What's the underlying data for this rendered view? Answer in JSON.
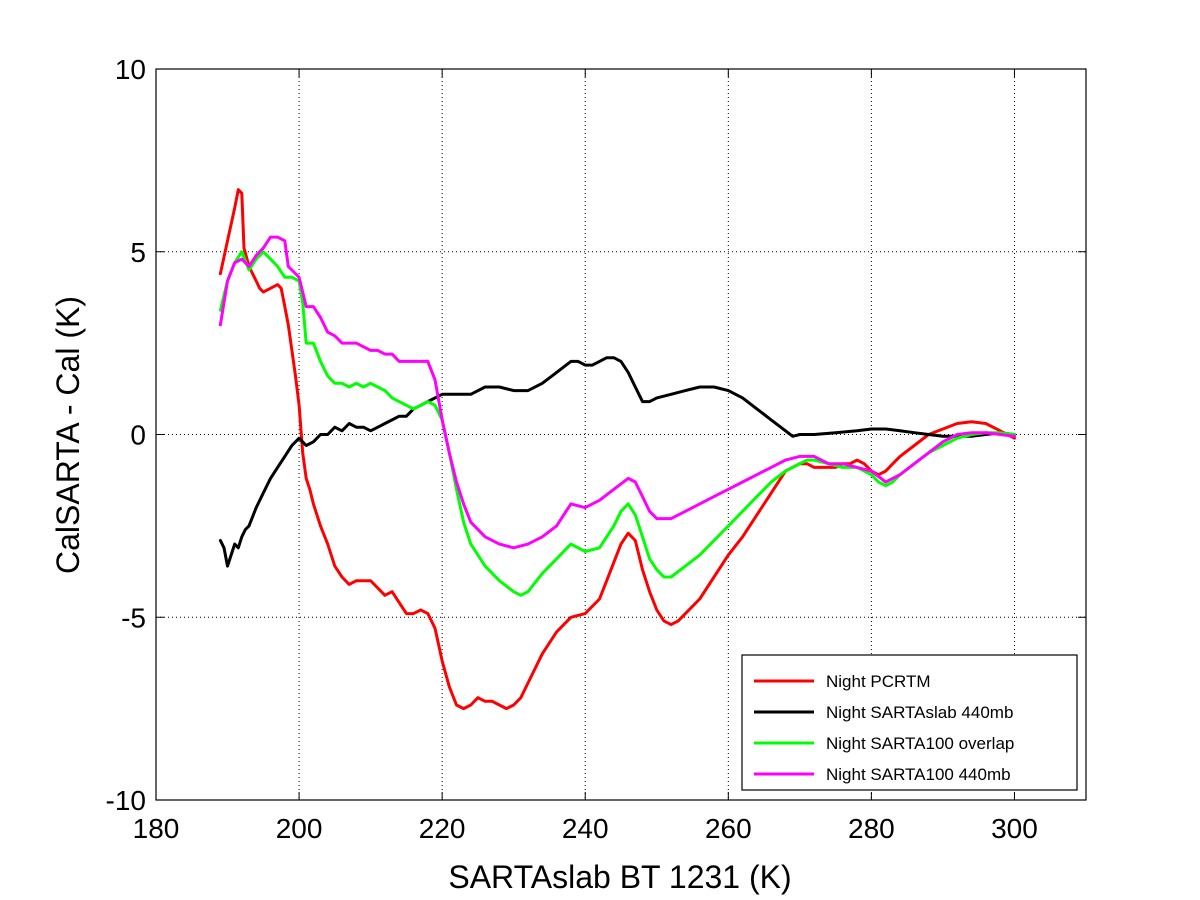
{
  "chart_data": {
    "type": "line",
    "title": "",
    "xlabel": "SARTAslab BT 1231 (K)",
    "ylabel": "CalSARTA - Cal (K)",
    "xlim": [
      180,
      310
    ],
    "ylim": [
      -10,
      10
    ],
    "xticks": [
      180,
      200,
      220,
      240,
      260,
      280,
      300
    ],
    "yticks": [
      -10,
      -5,
      0,
      5,
      10
    ],
    "xtick_labels": [
      "180",
      "200",
      "220",
      "240",
      "260",
      "280",
      "300"
    ],
    "ytick_labels": [
      "-10",
      "-5",
      "0",
      "5",
      "10"
    ],
    "grid": true,
    "legend_position": "bottom-right",
    "series": [
      {
        "name": "Night PCRTM",
        "color": "#ff0000",
        "x": [
          189,
          190,
          191,
          191.5,
          192,
          192.3,
          193,
          194,
          194.5,
          195,
          196,
          197,
          197.5,
          198,
          198.5,
          199,
          199.5,
          200,
          200.5,
          201,
          201.5,
          202,
          203,
          204,
          205,
          206,
          207,
          208,
          209,
          210,
          211,
          212,
          213,
          214,
          215,
          216,
          217,
          218,
          219,
          220,
          221,
          222,
          223,
          224,
          225,
          226,
          227,
          228,
          229,
          230,
          231,
          232,
          234,
          236,
          238,
          240,
          242,
          243,
          244,
          245,
          246,
          247,
          248,
          249,
          250,
          251,
          252,
          253,
          254,
          256,
          258,
          260,
          262,
          264,
          266,
          268,
          270,
          271,
          272,
          273,
          274,
          275,
          276,
          277,
          278,
          279,
          280,
          281,
          282,
          283,
          284,
          286,
          288,
          290,
          292,
          294,
          296,
          298,
          300
        ],
        "y": [
          4.4,
          5.3,
          6.2,
          6.7,
          6.6,
          5.1,
          4.6,
          4.2,
          4.0,
          3.9,
          4.0,
          4.1,
          4.0,
          3.5,
          3.0,
          2.3,
          1.6,
          0.8,
          -0.5,
          -1.2,
          -1.5,
          -1.9,
          -2.5,
          -3.0,
          -3.6,
          -3.9,
          -4.1,
          -4.0,
          -4.0,
          -4.0,
          -4.2,
          -4.4,
          -4.3,
          -4.6,
          -4.9,
          -4.9,
          -4.8,
          -4.9,
          -5.3,
          -6.2,
          -6.9,
          -7.4,
          -7.5,
          -7.4,
          -7.2,
          -7.3,
          -7.3,
          -7.4,
          -7.5,
          -7.4,
          -7.2,
          -6.8,
          -6.0,
          -5.4,
          -5.0,
          -4.9,
          -4.5,
          -4.0,
          -3.5,
          -3.0,
          -2.7,
          -2.9,
          -3.7,
          -4.3,
          -4.8,
          -5.1,
          -5.2,
          -5.1,
          -4.9,
          -4.5,
          -3.9,
          -3.3,
          -2.8,
          -2.2,
          -1.6,
          -1.0,
          -0.8,
          -0.8,
          -0.9,
          -0.9,
          -0.9,
          -0.9,
          -0.8,
          -0.8,
          -0.7,
          -0.8,
          -1.0,
          -1.1,
          -1.0,
          -0.8,
          -0.6,
          -0.3,
          0.0,
          0.15,
          0.3,
          0.35,
          0.3,
          0.1,
          -0.1
        ]
      },
      {
        "name": "Night SARTAslab 440mb",
        "color": "#000000",
        "x": [
          189,
          189.5,
          190,
          190.5,
          191,
          191.5,
          192,
          192.5,
          193,
          194,
          195,
          196,
          197,
          198,
          199,
          200,
          201,
          202,
          203,
          204,
          205,
          206,
          207,
          208,
          209,
          210,
          211,
          212,
          213,
          214,
          215,
          216,
          217,
          218,
          219,
          220,
          222,
          224,
          226,
          228,
          230,
          232,
          234,
          236,
          238,
          239,
          240,
          241,
          242,
          243,
          244,
          245,
          246,
          247,
          248,
          249,
          250,
          252,
          254,
          256,
          258,
          260,
          262,
          264,
          266,
          268,
          269,
          270,
          272,
          275,
          278,
          280,
          282,
          284,
          286,
          288,
          290,
          292,
          294,
          296,
          298,
          300
        ],
        "y": [
          -2.9,
          -3.1,
          -3.6,
          -3.3,
          -3.0,
          -3.1,
          -2.8,
          -2.6,
          -2.5,
          -2.0,
          -1.6,
          -1.2,
          -0.9,
          -0.6,
          -0.3,
          -0.1,
          -0.3,
          -0.2,
          0.0,
          0.0,
          0.2,
          0.1,
          0.3,
          0.2,
          0.2,
          0.1,
          0.2,
          0.3,
          0.4,
          0.5,
          0.5,
          0.7,
          0.8,
          0.9,
          1.0,
          1.1,
          1.1,
          1.1,
          1.3,
          1.3,
          1.2,
          1.2,
          1.4,
          1.7,
          2.0,
          2.0,
          1.9,
          1.9,
          2.0,
          2.1,
          2.1,
          2.0,
          1.7,
          1.3,
          0.9,
          0.9,
          1.0,
          1.1,
          1.2,
          1.3,
          1.3,
          1.2,
          1.0,
          0.7,
          0.4,
          0.1,
          -0.05,
          0.0,
          0.0,
          0.05,
          0.1,
          0.15,
          0.15,
          0.1,
          0.05,
          0.0,
          -0.05,
          -0.05,
          -0.05,
          0.0,
          0.05,
          0.0
        ]
      },
      {
        "name": "Night SARTA100 overlap",
        "color": "#00ff00",
        "x": [
          189,
          190,
          191,
          192,
          193,
          194,
          195,
          196,
          197,
          198,
          199,
          200,
          200.5,
          201,
          202,
          203,
          204,
          205,
          206,
          207,
          208,
          209,
          210,
          211,
          212,
          213,
          214,
          215,
          216,
          217,
          218,
          219,
          220,
          221,
          222,
          223,
          224,
          226,
          228,
          230,
          231,
          232,
          234,
          236,
          238,
          240,
          242,
          243,
          244,
          245,
          246,
          247,
          248,
          249,
          250,
          251,
          252,
          254,
          256,
          258,
          260,
          262,
          264,
          266,
          268,
          270,
          271,
          272,
          274,
          276,
          278,
          280,
          281,
          282,
          283,
          284,
          286,
          288,
          290,
          292,
          294,
          296,
          298,
          300
        ],
        "y": [
          3.4,
          4.2,
          4.7,
          5.0,
          4.5,
          4.8,
          5.0,
          4.8,
          4.6,
          4.3,
          4.3,
          4.2,
          3.6,
          2.5,
          2.5,
          2.0,
          1.6,
          1.4,
          1.4,
          1.3,
          1.4,
          1.3,
          1.4,
          1.3,
          1.2,
          1.0,
          0.9,
          0.8,
          0.7,
          0.8,
          0.9,
          0.8,
          0.4,
          -0.5,
          -1.5,
          -2.4,
          -3.0,
          -3.6,
          -4.0,
          -4.3,
          -4.4,
          -4.3,
          -3.8,
          -3.4,
          -3.0,
          -3.2,
          -3.1,
          -2.8,
          -2.5,
          -2.1,
          -1.9,
          -2.2,
          -2.8,
          -3.4,
          -3.7,
          -3.9,
          -3.9,
          -3.6,
          -3.3,
          -2.9,
          -2.5,
          -2.1,
          -1.7,
          -1.3,
          -1.0,
          -0.8,
          -0.7,
          -0.7,
          -0.8,
          -0.9,
          -0.9,
          -1.1,
          -1.3,
          -1.4,
          -1.3,
          -1.1,
          -0.8,
          -0.5,
          -0.3,
          -0.1,
          0.0,
          0.05,
          0.05,
          0.0
        ]
      },
      {
        "name": "Night SARTA100 440mb",
        "color": "#ff00ff",
        "x": [
          189,
          190,
          191,
          192,
          193,
          194,
          195,
          196,
          197,
          198,
          198.5,
          199,
          200,
          201,
          202,
          203,
          204,
          205,
          206,
          207,
          208,
          209,
          210,
          211,
          212,
          213,
          214,
          215,
          216,
          217,
          218,
          219,
          220,
          221,
          222,
          223,
          224,
          226,
          228,
          230,
          232,
          234,
          236,
          238,
          240,
          242,
          244,
          246,
          247,
          248,
          249,
          250,
          252,
          254,
          256,
          258,
          260,
          262,
          264,
          266,
          268,
          270,
          271,
          272,
          274,
          276,
          278,
          280,
          282,
          284,
          286,
          288,
          290,
          292,
          294,
          296,
          298,
          300
        ],
        "y": [
          3.0,
          4.2,
          4.7,
          4.8,
          4.6,
          4.9,
          5.1,
          5.4,
          5.4,
          5.3,
          4.6,
          4.5,
          4.3,
          3.5,
          3.5,
          3.2,
          2.8,
          2.7,
          2.5,
          2.5,
          2.5,
          2.4,
          2.3,
          2.3,
          2.2,
          2.2,
          2.0,
          2.0,
          2.0,
          2.0,
          2.0,
          1.5,
          0.4,
          -0.5,
          -1.3,
          -1.9,
          -2.4,
          -2.8,
          -3.0,
          -3.1,
          -3.0,
          -2.8,
          -2.5,
          -1.9,
          -2.0,
          -1.8,
          -1.5,
          -1.2,
          -1.3,
          -1.7,
          -2.1,
          -2.3,
          -2.3,
          -2.1,
          -1.9,
          -1.7,
          -1.5,
          -1.3,
          -1.1,
          -0.9,
          -0.7,
          -0.6,
          -0.6,
          -0.6,
          -0.8,
          -0.8,
          -0.9,
          -1.0,
          -1.3,
          -1.1,
          -0.8,
          -0.5,
          -0.2,
          0.0,
          0.05,
          0.05,
          0.0,
          -0.05
        ]
      }
    ]
  }
}
